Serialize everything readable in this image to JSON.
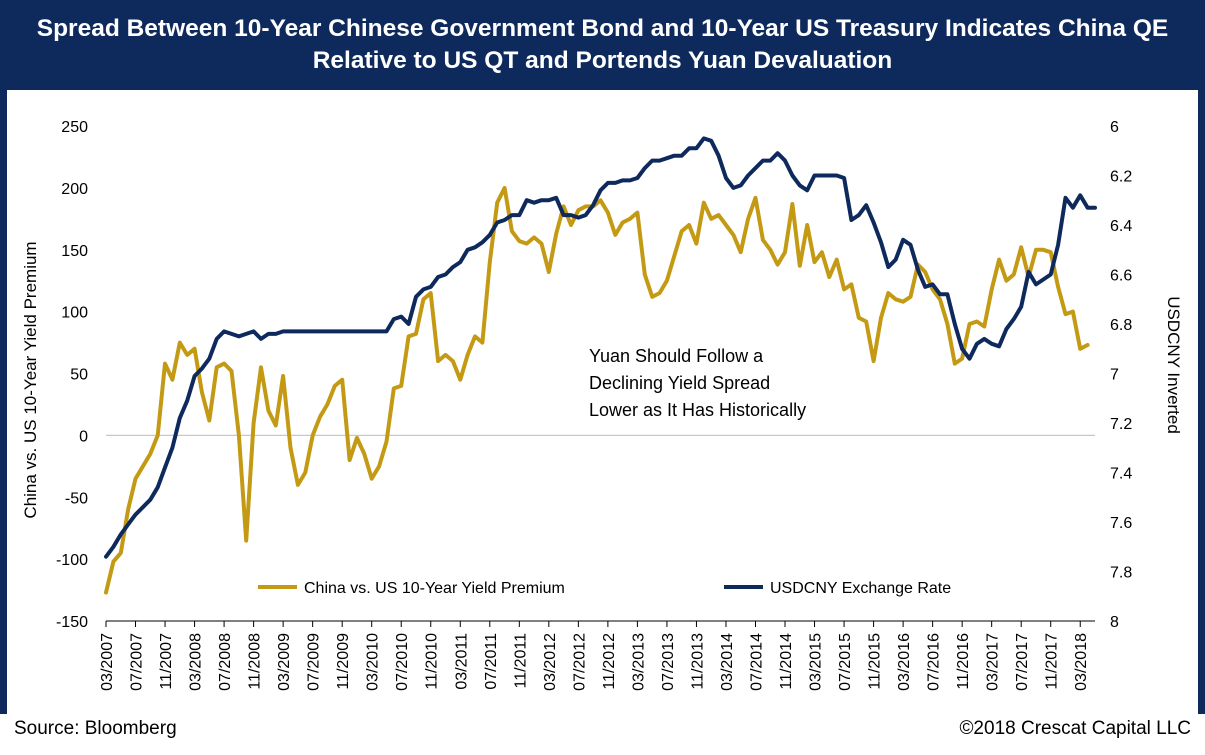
{
  "title_line1": "Spread Between 10-Year Chinese Government Bond and 10-Year US Treasury Indicates China QE",
  "title_line2": "Relative to US QT and Portends Yuan Devaluation",
  "source": "Source: Bloomberg",
  "copyright": "©2018 Crescat Capital LLC",
  "colors": {
    "spread": "#c49a14",
    "fx": "#0e2a5c",
    "frame": "#0e2a5c",
    "zero_line": "#c8c8c8"
  },
  "chart_data": {
    "type": "line",
    "title": "Spread Between 10-Year Chinese Government Bond and 10-Year US Treasury Indicates China QE Relative to US QT and Portends Yuan Devaluation",
    "ylabel": "China vs. US 10-Year Yield Premium",
    "y2label": "USDCNY Inverted",
    "ylim": [
      -150,
      250
    ],
    "y_ticks": [
      "250",
      "200",
      "150",
      "100",
      "50",
      "0",
      "-50",
      "-100",
      "-150"
    ],
    "y2lim": [
      8,
      6
    ],
    "y2_inverted": true,
    "y2_ticks": [
      "6",
      "6.2",
      "6.4",
      "6.6",
      "6.8",
      "7",
      "7.2",
      "7.4",
      "7.6",
      "7.8",
      "8"
    ],
    "x_start": "2007-03",
    "x_end": "2018-05",
    "x_ticks": [
      "03/2007",
      "07/2007",
      "11/2007",
      "03/2008",
      "07/2008",
      "11/2008",
      "03/2009",
      "07/2009",
      "11/2009",
      "03/2010",
      "07/2010",
      "11/2010",
      "03/2011",
      "07/2011",
      "11/2011",
      "03/2012",
      "07/2012",
      "11/2012",
      "03/2013",
      "07/2013",
      "11/2013",
      "03/2014",
      "07/2014",
      "11/2014",
      "03/2015",
      "07/2015",
      "11/2015",
      "03/2016",
      "07/2016",
      "11/2016",
      "03/2017",
      "07/2017",
      "11/2017",
      "03/2018"
    ],
    "legend": {
      "placement": "bottom"
    },
    "annotation": [
      "Yuan Should Follow a",
      "Declining Yield Spread",
      "Lower as It Has Historically"
    ],
    "series": [
      {
        "name": "China vs. US 10-Year Yield Premium",
        "axis": "left",
        "points": [
          [
            "2007-03",
            -127
          ],
          [
            "2007-04",
            -102
          ],
          [
            "2007-05",
            -95
          ],
          [
            "2007-06",
            -60
          ],
          [
            "2007-07",
            -35
          ],
          [
            "2007-08",
            -25
          ],
          [
            "2007-09",
            -15
          ],
          [
            "2007-10",
            0
          ],
          [
            "2007-11",
            58
          ],
          [
            "2007-12",
            45
          ],
          [
            "2008-01",
            75
          ],
          [
            "2008-02",
            65
          ],
          [
            "2008-03",
            70
          ],
          [
            "2008-04",
            35
          ],
          [
            "2008-05",
            12
          ],
          [
            "2008-06",
            55
          ],
          [
            "2008-07",
            58
          ],
          [
            "2008-08",
            52
          ],
          [
            "2008-09",
            0
          ],
          [
            "2008-10",
            -85
          ],
          [
            "2008-11",
            10
          ],
          [
            "2008-12",
            55
          ],
          [
            "2009-01",
            20
          ],
          [
            "2009-02",
            8
          ],
          [
            "2009-03",
            48
          ],
          [
            "2009-04",
            -10
          ],
          [
            "2009-05",
            -40
          ],
          [
            "2009-06",
            -30
          ],
          [
            "2009-07",
            0
          ],
          [
            "2009-08",
            15
          ],
          [
            "2009-09",
            25
          ],
          [
            "2009-10",
            40
          ],
          [
            "2009-11",
            45
          ],
          [
            "2009-12",
            -20
          ],
          [
            "2010-01",
            -2
          ],
          [
            "2010-02",
            -15
          ],
          [
            "2010-03",
            -35
          ],
          [
            "2010-04",
            -25
          ],
          [
            "2010-05",
            -5
          ],
          [
            "2010-06",
            38
          ],
          [
            "2010-07",
            40
          ],
          [
            "2010-08",
            80
          ],
          [
            "2010-09",
            82
          ],
          [
            "2010-10",
            110
          ],
          [
            "2010-11",
            115
          ],
          [
            "2010-12",
            60
          ],
          [
            "2011-01",
            65
          ],
          [
            "2011-02",
            60
          ],
          [
            "2011-03",
            45
          ],
          [
            "2011-04",
            65
          ],
          [
            "2011-05",
            80
          ],
          [
            "2011-06",
            75
          ],
          [
            "2011-07",
            140
          ],
          [
            "2011-08",
            188
          ],
          [
            "2011-09",
            200
          ],
          [
            "2011-10",
            165
          ],
          [
            "2011-11",
            157
          ],
          [
            "2011-12",
            155
          ],
          [
            "2012-01",
            160
          ],
          [
            "2012-02",
            155
          ],
          [
            "2012-03",
            132
          ],
          [
            "2012-04",
            163
          ],
          [
            "2012-05",
            185
          ],
          [
            "2012-06",
            170
          ],
          [
            "2012-07",
            182
          ],
          [
            "2012-08",
            185
          ],
          [
            "2012-09",
            185
          ],
          [
            "2012-10",
            190
          ],
          [
            "2012-11",
            180
          ],
          [
            "2012-12",
            162
          ],
          [
            "2013-01",
            172
          ],
          [
            "2013-02",
            175
          ],
          [
            "2013-03",
            180
          ],
          [
            "2013-04",
            130
          ],
          [
            "2013-05",
            112
          ],
          [
            "2013-06",
            115
          ],
          [
            "2013-07",
            125
          ],
          [
            "2013-08",
            145
          ],
          [
            "2013-09",
            165
          ],
          [
            "2013-10",
            170
          ],
          [
            "2013-11",
            155
          ],
          [
            "2013-12",
            188
          ],
          [
            "2014-01",
            175
          ],
          [
            "2014-02",
            178
          ],
          [
            "2014-03",
            170
          ],
          [
            "2014-04",
            162
          ],
          [
            "2014-05",
            148
          ],
          [
            "2014-06",
            175
          ],
          [
            "2014-07",
            192
          ],
          [
            "2014-08",
            158
          ],
          [
            "2014-09",
            150
          ],
          [
            "2014-10",
            138
          ],
          [
            "2014-11",
            148
          ],
          [
            "2014-12",
            187
          ],
          [
            "2015-01",
            137
          ],
          [
            "2015-02",
            170
          ],
          [
            "2015-03",
            140
          ],
          [
            "2015-04",
            148
          ],
          [
            "2015-05",
            128
          ],
          [
            "2015-06",
            142
          ],
          [
            "2015-07",
            118
          ],
          [
            "2015-08",
            122
          ],
          [
            "2015-09",
            95
          ],
          [
            "2015-10",
            92
          ],
          [
            "2015-11",
            60
          ],
          [
            "2015-12",
            95
          ],
          [
            "2016-01",
            115
          ],
          [
            "2016-02",
            110
          ],
          [
            "2016-03",
            108
          ],
          [
            "2016-04",
            112
          ],
          [
            "2016-05",
            138
          ],
          [
            "2016-06",
            132
          ],
          [
            "2016-07",
            118
          ],
          [
            "2016-08",
            110
          ],
          [
            "2016-09",
            90
          ],
          [
            "2016-10",
            58
          ],
          [
            "2016-11",
            62
          ],
          [
            "2016-12",
            90
          ],
          [
            "2017-01",
            92
          ],
          [
            "2017-02",
            88
          ],
          [
            "2017-03",
            118
          ],
          [
            "2017-04",
            142
          ],
          [
            "2017-05",
            125
          ],
          [
            "2017-06",
            130
          ],
          [
            "2017-07",
            152
          ],
          [
            "2017-08",
            128
          ],
          [
            "2017-09",
            150
          ],
          [
            "2017-10",
            150
          ],
          [
            "2017-11",
            148
          ],
          [
            "2017-12",
            120
          ],
          [
            "2018-01",
            98
          ],
          [
            "2018-02",
            100
          ],
          [
            "2018-03",
            70
          ],
          [
            "2018-04",
            73
          ]
        ]
      },
      {
        "name": "USDCNY Exchange Rate",
        "axis": "right",
        "points": [
          [
            "2007-03",
            7.74
          ],
          [
            "2007-04",
            7.7
          ],
          [
            "2007-05",
            7.65
          ],
          [
            "2007-06",
            7.61
          ],
          [
            "2007-07",
            7.57
          ],
          [
            "2007-08",
            7.54
          ],
          [
            "2007-09",
            7.51
          ],
          [
            "2007-10",
            7.46
          ],
          [
            "2007-11",
            7.38
          ],
          [
            "2007-12",
            7.3
          ],
          [
            "2008-01",
            7.18
          ],
          [
            "2008-02",
            7.11
          ],
          [
            "2008-03",
            7.01
          ],
          [
            "2008-04",
            6.98
          ],
          [
            "2008-05",
            6.94
          ],
          [
            "2008-06",
            6.86
          ],
          [
            "2008-07",
            6.83
          ],
          [
            "2008-08",
            6.84
          ],
          [
            "2008-09",
            6.85
          ],
          [
            "2008-10",
            6.84
          ],
          [
            "2008-11",
            6.83
          ],
          [
            "2008-12",
            6.86
          ],
          [
            "2009-01",
            6.84
          ],
          [
            "2009-02",
            6.84
          ],
          [
            "2009-03",
            6.83
          ],
          [
            "2009-04",
            6.83
          ],
          [
            "2009-05",
            6.83
          ],
          [
            "2009-06",
            6.83
          ],
          [
            "2009-07",
            6.83
          ],
          [
            "2009-08",
            6.83
          ],
          [
            "2009-09",
            6.83
          ],
          [
            "2009-10",
            6.83
          ],
          [
            "2009-11",
            6.83
          ],
          [
            "2009-12",
            6.83
          ],
          [
            "2010-01",
            6.83
          ],
          [
            "2010-02",
            6.83
          ],
          [
            "2010-03",
            6.83
          ],
          [
            "2010-04",
            6.83
          ],
          [
            "2010-05",
            6.83
          ],
          [
            "2010-06",
            6.78
          ],
          [
            "2010-07",
            6.77
          ],
          [
            "2010-08",
            6.8
          ],
          [
            "2010-09",
            6.69
          ],
          [
            "2010-10",
            6.66
          ],
          [
            "2010-11",
            6.65
          ],
          [
            "2010-12",
            6.61
          ],
          [
            "2011-01",
            6.6
          ],
          [
            "2011-02",
            6.57
          ],
          [
            "2011-03",
            6.55
          ],
          [
            "2011-04",
            6.5
          ],
          [
            "2011-05",
            6.49
          ],
          [
            "2011-06",
            6.47
          ],
          [
            "2011-07",
            6.44
          ],
          [
            "2011-08",
            6.39
          ],
          [
            "2011-09",
            6.38
          ],
          [
            "2011-10",
            6.36
          ],
          [
            "2011-11",
            6.36
          ],
          [
            "2011-12",
            6.3
          ],
          [
            "2012-01",
            6.31
          ],
          [
            "2012-02",
            6.3
          ],
          [
            "2012-03",
            6.3
          ],
          [
            "2012-04",
            6.29
          ],
          [
            "2012-05",
            6.36
          ],
          [
            "2012-06",
            6.36
          ],
          [
            "2012-07",
            6.37
          ],
          [
            "2012-08",
            6.36
          ],
          [
            "2012-09",
            6.32
          ],
          [
            "2012-10",
            6.26
          ],
          [
            "2012-11",
            6.23
          ],
          [
            "2012-12",
            6.23
          ],
          [
            "2013-01",
            6.22
          ],
          [
            "2013-02",
            6.22
          ],
          [
            "2013-03",
            6.21
          ],
          [
            "2013-04",
            6.17
          ],
          [
            "2013-05",
            6.14
          ],
          [
            "2013-06",
            6.14
          ],
          [
            "2013-07",
            6.13
          ],
          [
            "2013-08",
            6.12
          ],
          [
            "2013-09",
            6.12
          ],
          [
            "2013-10",
            6.09
          ],
          [
            "2013-11",
            6.09
          ],
          [
            "2013-12",
            6.05
          ],
          [
            "2014-01",
            6.06
          ],
          [
            "2014-02",
            6.12
          ],
          [
            "2014-03",
            6.21
          ],
          [
            "2014-04",
            6.25
          ],
          [
            "2014-05",
            6.24
          ],
          [
            "2014-06",
            6.2
          ],
          [
            "2014-07",
            6.17
          ],
          [
            "2014-08",
            6.14
          ],
          [
            "2014-09",
            6.14
          ],
          [
            "2014-10",
            6.11
          ],
          [
            "2014-11",
            6.14
          ],
          [
            "2014-12",
            6.2
          ],
          [
            "2015-01",
            6.24
          ],
          [
            "2015-02",
            6.26
          ],
          [
            "2015-03",
            6.2
          ],
          [
            "2015-04",
            6.2
          ],
          [
            "2015-05",
            6.2
          ],
          [
            "2015-06",
            6.2
          ],
          [
            "2015-07",
            6.21
          ],
          [
            "2015-08",
            6.38
          ],
          [
            "2015-09",
            6.36
          ],
          [
            "2015-10",
            6.32
          ],
          [
            "2015-11",
            6.39
          ],
          [
            "2015-12",
            6.47
          ],
          [
            "2016-01",
            6.57
          ],
          [
            "2016-02",
            6.54
          ],
          [
            "2016-03",
            6.46
          ],
          [
            "2016-04",
            6.48
          ],
          [
            "2016-05",
            6.58
          ],
          [
            "2016-06",
            6.65
          ],
          [
            "2016-07",
            6.64
          ],
          [
            "2016-08",
            6.68
          ],
          [
            "2016-09",
            6.68
          ],
          [
            "2016-10",
            6.8
          ],
          [
            "2016-11",
            6.9
          ],
          [
            "2016-12",
            6.94
          ],
          [
            "2017-01",
            6.88
          ],
          [
            "2017-02",
            6.86
          ],
          [
            "2017-03",
            6.88
          ],
          [
            "2017-04",
            6.89
          ],
          [
            "2017-05",
            6.82
          ],
          [
            "2017-06",
            6.78
          ],
          [
            "2017-07",
            6.73
          ],
          [
            "2017-08",
            6.59
          ],
          [
            "2017-09",
            6.64
          ],
          [
            "2017-10",
            6.62
          ],
          [
            "2017-11",
            6.6
          ],
          [
            "2017-12",
            6.48
          ],
          [
            "2018-01",
            6.29
          ],
          [
            "2018-02",
            6.33
          ],
          [
            "2018-03",
            6.28
          ],
          [
            "2018-04",
            6.33
          ],
          [
            "2018-05",
            6.33
          ]
        ]
      }
    ]
  }
}
